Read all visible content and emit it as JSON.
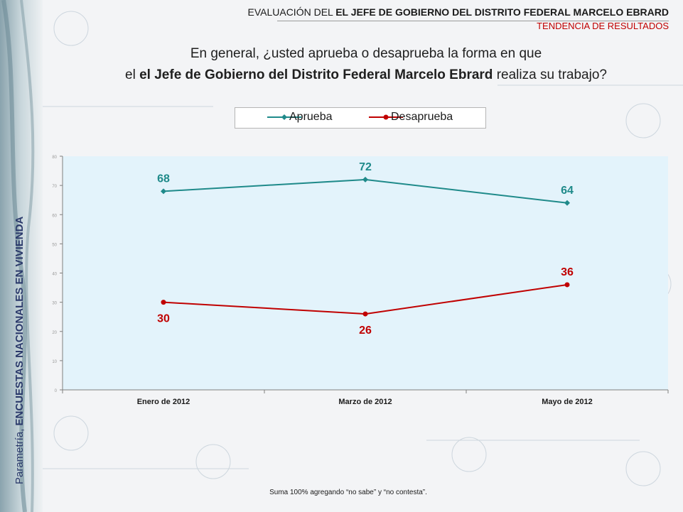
{
  "header": {
    "title_prefix": "EVALUACIÓN DEL",
    "title_bold": "EL JEFE DE GOBIERNO DEL DISTRITO FEDERAL MARCELO EBRARD",
    "subtitle": "TENDENCIA DE RESULTADOS"
  },
  "question": {
    "line1": "En general, ¿usted aprueba o desaprueba la forma en que",
    "line2_prefix": "el",
    "line2_bold": "el Jefe de Gobierno del Distrito Federal Marcelo Ebrard",
    "line2_suffix": "realiza su trabajo?"
  },
  "side_label": {
    "prefix": "Parametría,",
    "bold": "ENCUESTAS NACIONALES EN VIVIENDA"
  },
  "note": "Suma 100%  agregando “no sabe” y “no contesta”.",
  "colors": {
    "aprueba": "#1f8a8a",
    "desaprueba": "#c00000",
    "plot_bg": "#e3f3fb"
  },
  "chart_data": {
    "type": "line",
    "title": "",
    "xlabel": "",
    "ylabel": "",
    "categories": [
      "Enero de 2012",
      "Marzo de 2012",
      "Mayo de 2012"
    ],
    "series": [
      {
        "name": "Aprueba",
        "values": [
          68,
          72,
          64
        ],
        "color": "#1f8a8a"
      },
      {
        "name": "Desaprueba",
        "values": [
          30,
          26,
          36
        ],
        "color": "#c00000"
      }
    ],
    "ylim": [
      0,
      80
    ],
    "yticks": [
      0,
      10,
      20,
      30,
      40,
      50,
      60,
      70,
      80
    ],
    "legend_position": "top-center",
    "grid": false
  }
}
